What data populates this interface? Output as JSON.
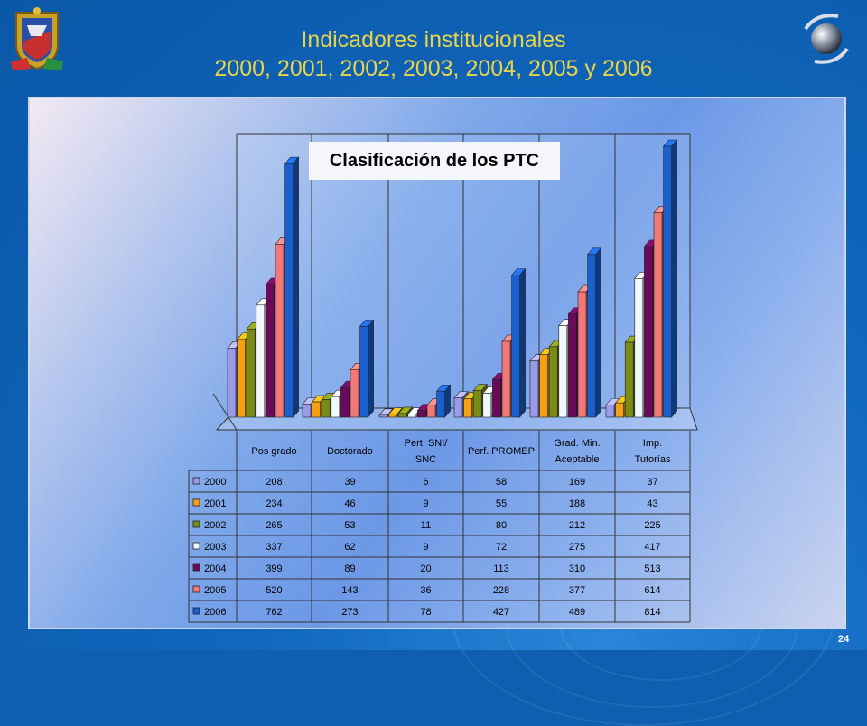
{
  "slide": {
    "title_line1": "Indicadores institucionales",
    "title_line2": "2000, 2001, 2002, 2003, 2004, 2005 y 2006",
    "page_number": "24",
    "logo_icon": "university-crest-icon",
    "globe_icon": "globe-icon",
    "title_color": "#e8d44a"
  },
  "chart_data": {
    "type": "bar",
    "title": "Clasificación de los PTC",
    "categories": [
      "Pos grado",
      "Doctorado",
      "Pert. SNI/ SNC",
      "Perf. PROMEP",
      "Grad. Min. Aceptable",
      "Imp. Tutorías"
    ],
    "series": [
      {
        "name": "2000",
        "color": "#9a9ae8",
        "values": [
          208,
          39,
          6,
          58,
          169,
          37
        ]
      },
      {
        "name": "2001",
        "color": "#f5a010",
        "values": [
          234,
          46,
          9,
          55,
          188,
          43
        ]
      },
      {
        "name": "2002",
        "color": "#7a8c18",
        "values": [
          265,
          53,
          11,
          80,
          212,
          225
        ]
      },
      {
        "name": "2003",
        "color": "#f2f8ff",
        "values": [
          337,
          62,
          9,
          72,
          275,
          417
        ]
      },
      {
        "name": "2004",
        "color": "#6a0a5a",
        "values": [
          399,
          89,
          20,
          113,
          310,
          513
        ]
      },
      {
        "name": "2005",
        "color": "#f07878",
        "values": [
          520,
          143,
          36,
          228,
          377,
          614
        ]
      },
      {
        "name": "2006",
        "color": "#1a5fcf",
        "values": [
          762,
          273,
          78,
          427,
          489,
          814
        ]
      }
    ],
    "ylim": [
      0,
      814
    ],
    "legend": "table-below",
    "grid": false
  }
}
